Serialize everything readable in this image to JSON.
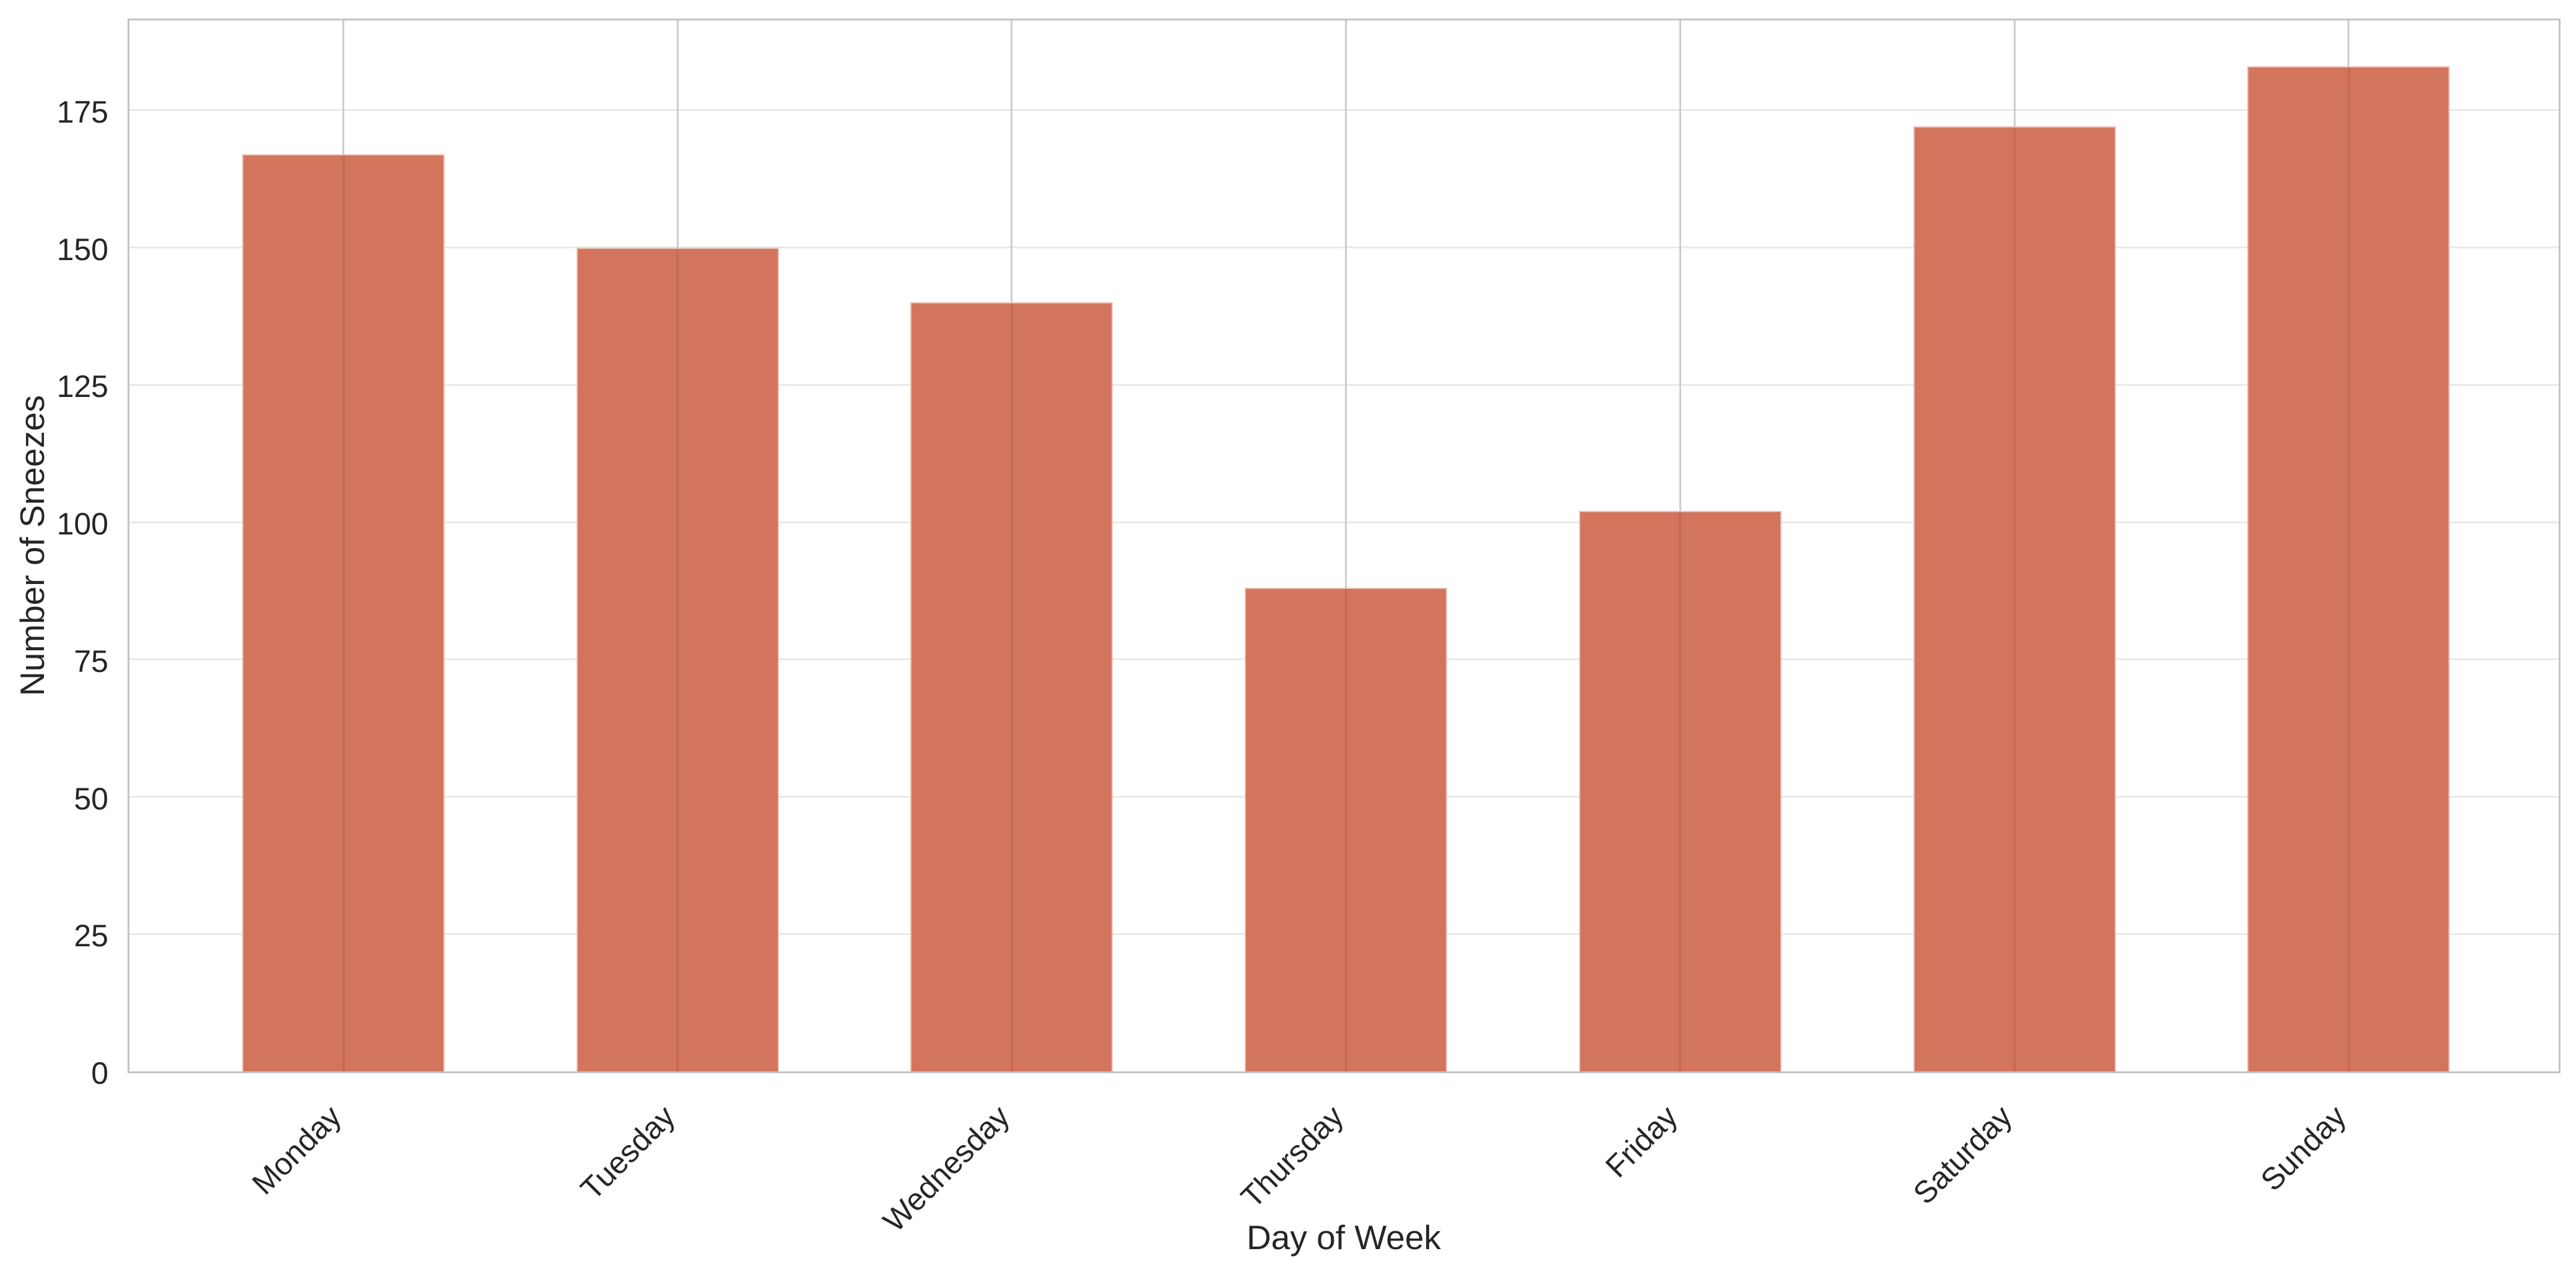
{
  "chart_data": {
    "type": "bar",
    "title": "",
    "categories": [
      "Monday",
      "Tuesday",
      "Wednesday",
      "Thursday",
      "Friday",
      "Saturday",
      "Sunday"
    ],
    "values": [
      167,
      150,
      140,
      88,
      102,
      172,
      183
    ],
    "xlabel": "Day of Week",
    "ylabel": "Number of Sneezes",
    "yticks": [
      0,
      25,
      50,
      75,
      100,
      125,
      150,
      175
    ],
    "ylim": [
      0,
      192
    ],
    "grid": true,
    "legend_position": "none",
    "colors": {
      "bar_fill": "#d3755d",
      "h_grid": "#e9e9e9",
      "v_grid": "#cbcdce",
      "spine": "#c2c5c6",
      "text": "#262626",
      "background": "#ffffff"
    }
  }
}
